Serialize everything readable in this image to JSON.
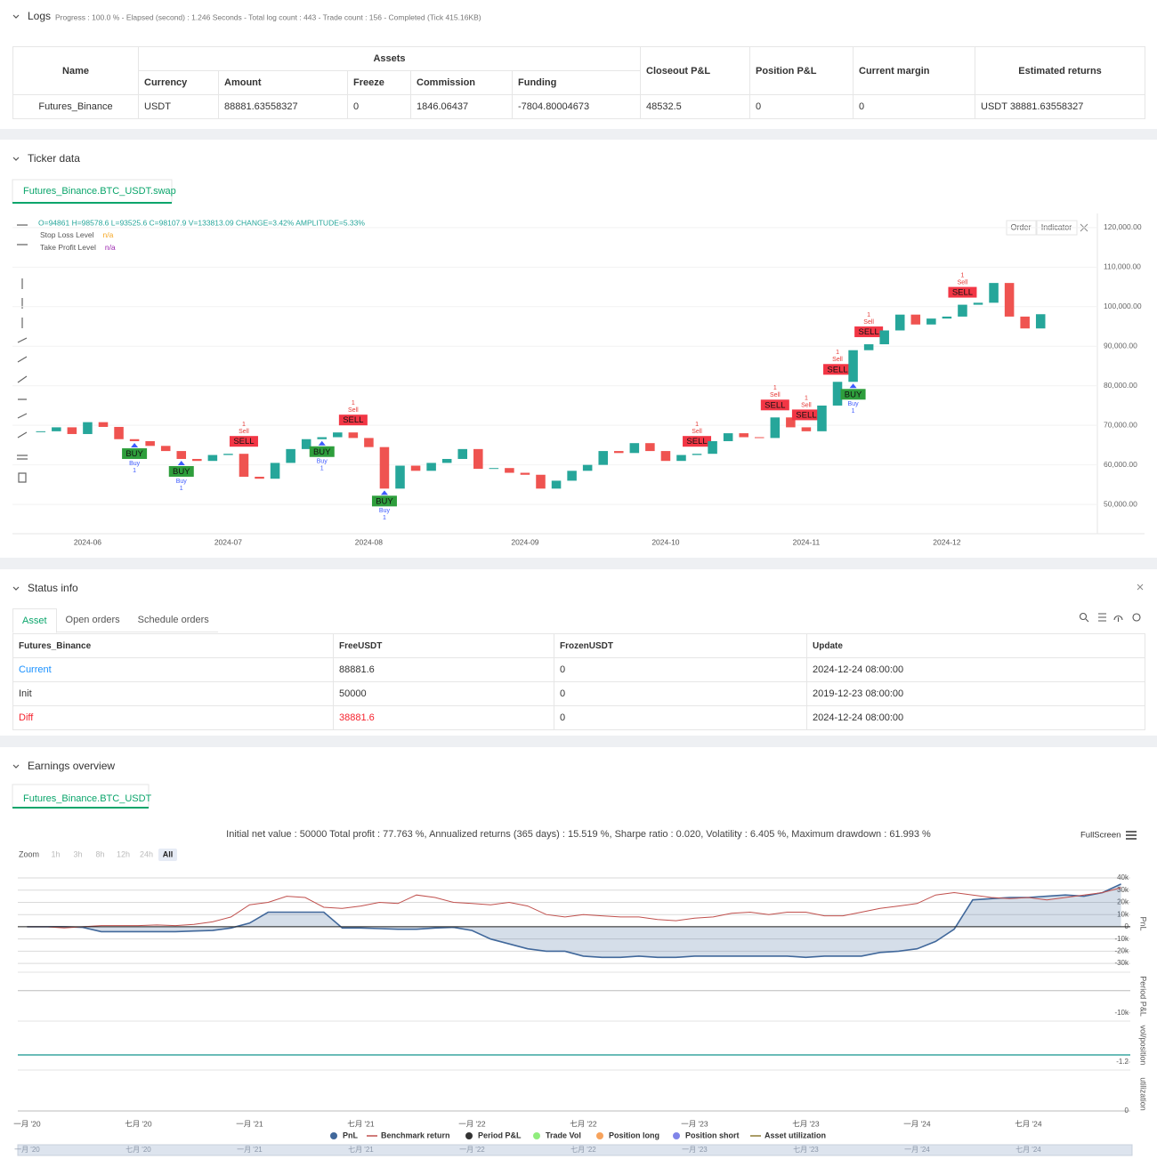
{
  "logs": {
    "title": "Logs",
    "summary": "Progress : 100.0 % - Elapsed (second) : 1.246 Seconds - Total log count : 443 - Trade count : 156 - Completed (Tick 415.16KB)",
    "table": {
      "header": [
        "Name",
        "Assets",
        "Closeout P&L",
        "Position P&L",
        "Current margin",
        "Estimated returns"
      ],
      "subheader": [
        "Currency",
        "Amount",
        "Freeze",
        "Commission",
        "Funding"
      ],
      "rows": [
        [
          "Futures_Binance",
          "USDT",
          "88881.63558327",
          "0",
          "1846.06437",
          "-7804.80004673",
          "48532.5",
          "0",
          "0",
          "USDT 38881.63558327"
        ]
      ]
    }
  },
  "ticker": {
    "title": "Ticker data",
    "tab": "Futures_Binance.BTC_USDT.swap",
    "ohlc": "O=94861 H=98578.6 L=93525.6 C=98107.9 V=133813.09 CHANGE=3.42% AMPLITUDE=5.33%",
    "legend": [
      {
        "name": "Stop Loss Level",
        "value": "n/a",
        "color": "#f5a623"
      },
      {
        "name": "Take Profit Level",
        "value": "n/a",
        "color": "#9c27b0"
      }
    ],
    "buttons": [
      "Order",
      "Indicator"
    ],
    "chart_data": {
      "type": "candlestick",
      "categories": [
        null,
        null,
        null,
        "2024-06",
        null,
        null,
        null,
        null,
        null,
        null,
        null,
        null,
        "2024-07",
        null,
        null,
        null,
        null,
        null,
        null,
        null,
        null,
        "2024-08",
        null,
        null,
        null,
        null,
        null,
        null,
        null,
        null,
        null,
        "2024-09",
        null,
        null,
        null,
        null,
        null,
        null,
        null,
        null,
        "2024-10",
        null,
        null,
        null,
        null,
        null,
        null,
        null,
        null,
        "2024-11",
        null,
        null,
        null,
        null,
        null,
        null,
        null,
        null,
        "2024-12",
        null,
        null,
        null,
        null,
        null,
        null
      ],
      "values": [
        68500,
        69500,
        67800,
        70800,
        69600,
        66500,
        66000,
        64800,
        63500,
        61500,
        61000,
        62500,
        62800,
        57000,
        56500,
        60500,
        64000,
        66500,
        67000,
        68200,
        66800,
        64500,
        54000,
        59800,
        58500,
        60500,
        61500,
        64000,
        59000,
        59200,
        58000,
        57500,
        54000,
        56000,
        58500,
        60000,
        63500,
        63000,
        65500,
        63500,
        61000,
        62500,
        62800,
        66000,
        68000,
        67000,
        66800,
        72000,
        69500,
        68500,
        75000,
        81000,
        89000,
        90500,
        94000,
        98000,
        95500,
        97000,
        97500,
        100500,
        101000,
        106000,
        97500,
        94500,
        98100
      ],
      "signals": [
        null,
        null,
        null,
        null,
        null,
        null,
        {
          "tag": "BUY",
          "text": "Buy",
          "n": 1
        },
        null,
        null,
        {
          "tag": "BUY",
          "text": "Buy",
          "n": 1
        },
        null,
        null,
        null,
        {
          "tag": "SELL",
          "text": "Sell",
          "n": 1
        },
        null,
        null,
        null,
        null,
        {
          "tag": "BUY",
          "text": "Buy",
          "n": 1
        },
        null,
        {
          "tag": "SELL",
          "text": "Sell",
          "n": 1
        },
        null,
        {
          "tag": "BUY",
          "text": "Buy",
          "n": 1
        },
        null,
        null,
        null,
        null,
        null,
        null,
        null,
        null,
        null,
        null,
        null,
        null,
        null,
        null,
        null,
        null,
        null,
        null,
        null,
        {
          "tag": "SELL",
          "text": "Sell",
          "n": 1
        },
        null,
        null,
        null,
        null,
        {
          "tag": "SELL",
          "text": "Sell",
          "n": 1
        },
        null,
        {
          "tag": "SELL",
          "text": "Sell",
          "n": 1
        },
        null,
        {
          "tag": "SELL",
          "text": "Sell",
          "n": 1
        },
        {
          "tag": "BUY",
          "text": "Buy",
          "n": 1
        },
        {
          "tag": "SELL",
          "text": "Sell",
          "n": 1
        },
        null,
        null,
        null,
        null,
        null,
        {
          "tag": "SELL",
          "text": "Sell",
          "n": 1
        },
        null,
        null,
        null,
        null,
        null
      ],
      "up_color": "#26a69a",
      "down_color": "#ef5350",
      "ylim": [
        42600,
        122900
      ],
      "yticks": [
        {
          "value": 50000,
          "label": "50,000.00"
        },
        {
          "value": 60000,
          "label": "60,000.00"
        },
        {
          "value": 70000,
          "label": "70,000.00"
        },
        {
          "value": 80000,
          "label": "80,000.00"
        },
        {
          "value": 90000,
          "label": "90,000.00"
        },
        {
          "value": 100000,
          "label": "100,000.00"
        },
        {
          "value": 110000,
          "label": "110,000.00"
        },
        {
          "value": 120000,
          "label": "120,000.00"
        }
      ],
      "grid": true
    }
  },
  "status": {
    "title": "Status info",
    "tabs": [
      "Asset",
      "Open orders",
      "Schedule orders"
    ],
    "table": {
      "header": [
        "Futures_Binance",
        "FreeUSDT",
        "FrozenUSDT",
        "Update"
      ],
      "rows": [
        [
          "Current",
          "88881.6",
          "0",
          "2024-12-24 08:00:00"
        ],
        [
          "Init",
          "50000",
          "0",
          "2019-12-23 08:00:00"
        ],
        [
          "Diff",
          "38881.6",
          "0",
          "2024-12-24 08:00:00"
        ]
      ]
    }
  },
  "earnings": {
    "title": "Earnings overview",
    "tab": "Futures_Binance.BTC_USDT",
    "summary": "Initial net value : 50000 Total profit : 77.763 %, Annualized returns (365 days) : 15.519 %, Sharpe ratio : 0.020, Volatility : 6.405 %, Maximum drawdown : 61.993 %",
    "fullscreen": "FullScreen",
    "zoom_label": "Zoom",
    "zoom": [
      "1h",
      "3h",
      "8h",
      "12h",
      "24h",
      "All"
    ],
    "chart_data": {
      "type": "line",
      "y_label": "PnL",
      "categories": [
        "一月 '20",
        null,
        null,
        null,
        null,
        null,
        "七月 '20",
        null,
        null,
        null,
        null,
        null,
        "一月 '21",
        null,
        null,
        null,
        null,
        null,
        "七月 '21",
        null,
        null,
        null,
        null,
        null,
        "一月 '22",
        null,
        null,
        null,
        null,
        null,
        "七月 '22",
        null,
        null,
        null,
        null,
        null,
        "一月 '23",
        null,
        null,
        null,
        null,
        null,
        "七月 '23",
        null,
        null,
        null,
        null,
        null,
        "一月 '24",
        null,
        null,
        null,
        null,
        null,
        "七月 '24",
        null,
        null,
        null,
        null,
        null
      ],
      "series": [
        {
          "name": "PnL",
          "color": "#41689b",
          "marker": "circle",
          "area": true,
          "values": [
            0,
            0,
            0,
            -500,
            -4000,
            -4000,
            -4000,
            -4000,
            -4000,
            -3500,
            -3000,
            -1000,
            3000,
            12000,
            12000,
            12000,
            12000,
            -1000,
            -1000,
            -1500,
            -2000,
            -2000,
            -1000,
            -500,
            -3000,
            -10000,
            -14000,
            -18000,
            -20000,
            -20000,
            -24000,
            -25000,
            -25000,
            -24000,
            -25000,
            -25000,
            -24000,
            -24000,
            -24000,
            -24000,
            -24000,
            -24000,
            -25000,
            -24000,
            -24000,
            -24000,
            -21000,
            -20000,
            -18000,
            -12000,
            -2000,
            22000,
            23000,
            24000,
            24000,
            25000,
            26000,
            25000,
            28000,
            35000
          ]
        },
        {
          "name": "Benchmark return",
          "color": "#c0504d",
          "marker": "line",
          "area": false,
          "values": [
            0,
            0,
            -1000,
            0,
            1000,
            1000,
            1000,
            1500,
            1000,
            2000,
            4000,
            8000,
            18000,
            20000,
            25000,
            24000,
            16000,
            15000,
            17000,
            20000,
            19000,
            26000,
            24000,
            20000,
            19000,
            18000,
            20000,
            17000,
            10000,
            8000,
            10000,
            9000,
            8000,
            8000,
            6000,
            5000,
            7000,
            8000,
            11000,
            12000,
            10000,
            12000,
            12000,
            9000,
            9000,
            12000,
            15000,
            17000,
            19000,
            26000,
            28000,
            26000,
            24000,
            23000,
            24000,
            22000,
            24000,
            26000,
            28000,
            32000
          ]
        }
      ],
      "ylim": [
        -35000,
        40000
      ],
      "yticks": [
        {
          "value": -30000,
          "label": "-30k"
        },
        {
          "value": -20000,
          "label": "-20k"
        },
        {
          "value": -10000,
          "label": "-10k"
        },
        0,
        {
          "value": 10000,
          "label": "10k"
        },
        {
          "value": 20000,
          "label": "20k"
        },
        {
          "value": 30000,
          "label": "30k"
        },
        {
          "value": 40000,
          "label": "40k"
        }
      ],
      "grid": true,
      "legend_extra": [
        {
          "name": "Period P&L",
          "color": "#333333",
          "marker": "circle"
        },
        {
          "name": "Trade Vol",
          "color": "#90ed7d",
          "marker": "circle"
        },
        {
          "name": "Position long",
          "color": "#f7a35c",
          "marker": "circle"
        },
        {
          "name": "Position short",
          "color": "#8085e9",
          "marker": "circle"
        },
        {
          "name": "Asset utilization",
          "color": "#8d7b34",
          "marker": "line"
        }
      ],
      "panels": [
        {
          "y_label": "Period P&L",
          "ylim": [
            -12500,
            7500
          ],
          "yticks": [
            {
              "value": -10000,
              "label": "-10k"
            }
          ]
        },
        {
          "y_label": "vol/position",
          "ylim": [
            -2.1,
            5.4
          ],
          "yticks": [
            -1.2
          ]
        },
        {
          "y_label": "utilization",
          "ylim": [
            -0.15,
            1.1
          ],
          "yticks": [
            0
          ]
        }
      ]
    }
  }
}
